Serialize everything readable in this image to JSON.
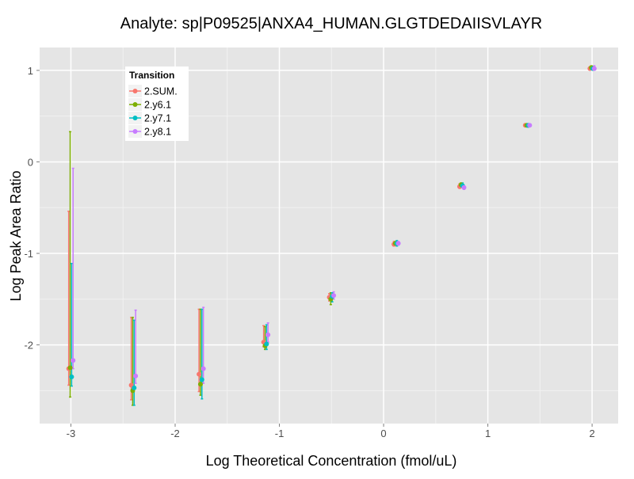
{
  "chart_data": {
    "type": "scatter",
    "title": "Analyte: sp|P09525|ANXA4_HUMAN.GLGTDEDAIISVLAYR",
    "xlabel": "Log Theoretical Concentration (fmol/uL)",
    "ylabel": "Log Peak Area Ratio",
    "xlim": [
      -3.3,
      2.25
    ],
    "ylim": [
      -2.86,
      1.25
    ],
    "xticks": [
      -3,
      -2,
      -1,
      0,
      1,
      2
    ],
    "yticks": [
      -2,
      -1,
      0,
      1
    ],
    "grid": true,
    "legend": {
      "title": "Transition",
      "placement": "top-left"
    },
    "x": [
      -3.0,
      -2.4,
      -1.75,
      -1.13,
      -0.5,
      0.12,
      0.75,
      1.38,
      2.0
    ],
    "series": [
      {
        "name": "2.SUM.",
        "color": "#F8766D",
        "values": [
          -2.26,
          -2.44,
          -2.32,
          -1.97,
          -1.48,
          -0.9,
          -0.27,
          0.4,
          1.02
        ],
        "lower": [
          -2.44,
          -2.6,
          -2.51,
          -2.02,
          -1.52,
          -0.92,
          -0.29,
          0.39,
          1.01
        ],
        "upper": [
          -0.54,
          -1.7,
          -1.61,
          -1.79,
          -1.44,
          -0.87,
          -0.24,
          0.41,
          1.04
        ]
      },
      {
        "name": "2.y6.1",
        "color": "#7CAE00",
        "values": [
          -2.25,
          -2.5,
          -2.43,
          -2.01,
          -1.5,
          -0.89,
          -0.25,
          0.4,
          1.03
        ],
        "lower": [
          -2.57,
          -2.66,
          -2.55,
          -2.05,
          -1.56,
          -0.91,
          -0.27,
          0.39,
          1.02
        ],
        "upper": [
          0.33,
          -1.7,
          -1.61,
          -1.8,
          -1.43,
          -0.87,
          -0.23,
          0.41,
          1.05
        ]
      },
      {
        "name": "2.y7.1",
        "color": "#00BFC4",
        "values": [
          -2.35,
          -2.47,
          -2.38,
          -1.99,
          -1.47,
          -0.89,
          -0.26,
          0.4,
          1.02
        ],
        "lower": [
          -2.45,
          -2.66,
          -2.59,
          -2.05,
          -1.53,
          -0.92,
          -0.28,
          0.38,
          1.01
        ],
        "upper": [
          -1.11,
          -1.73,
          -1.61,
          -1.78,
          -1.43,
          -0.86,
          -0.23,
          0.41,
          1.04
        ]
      },
      {
        "name": "2.y8.1",
        "color": "#C77CFF",
        "values": [
          -2.17,
          -2.34,
          -2.26,
          -1.89,
          -1.46,
          -0.89,
          -0.28,
          0.4,
          1.02
        ],
        "lower": [
          -2.26,
          -2.42,
          -2.42,
          -1.97,
          -1.5,
          -0.91,
          -0.3,
          0.39,
          1.01
        ],
        "upper": [
          -0.07,
          -1.62,
          -1.59,
          -1.76,
          -1.42,
          -0.87,
          -0.26,
          0.41,
          1.05
        ]
      }
    ]
  }
}
